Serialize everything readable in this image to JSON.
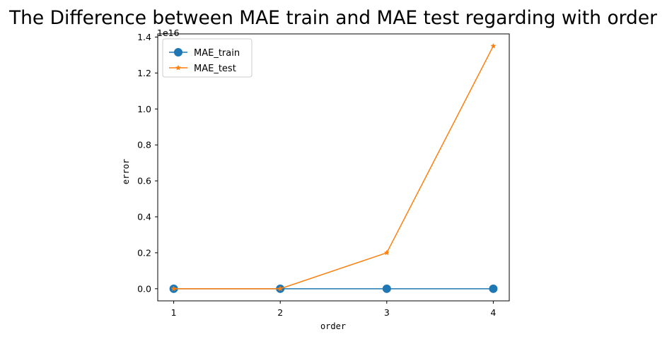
{
  "chart_data": {
    "type": "line",
    "title": "The Difference between MAE train and MAE test regarding with order",
    "xlabel": "order",
    "ylabel": "error",
    "y_offset_label": "1e16",
    "x": [
      1,
      2,
      3,
      4
    ],
    "x_ticks": [
      "1",
      "2",
      "3",
      "4"
    ],
    "y_ticks": [
      "0.0",
      "0.2",
      "0.4",
      "0.6",
      "0.8",
      "1.0",
      "1.2",
      "1.4"
    ],
    "xlim": [
      0.85,
      4.15
    ],
    "ylim": [
      -0.0675,
      1.4175
    ],
    "grid": false,
    "legend_position": "top-left",
    "series": [
      {
        "name": "MAE_train",
        "values": [
          0.0,
          0.0,
          0.0,
          0.0
        ],
        "color": "#1f77b4",
        "marker": "circle"
      },
      {
        "name": "MAE_test",
        "values": [
          0.0,
          0.0,
          0.2,
          1.35
        ],
        "color": "#ff7f0e",
        "marker": "star"
      }
    ]
  }
}
